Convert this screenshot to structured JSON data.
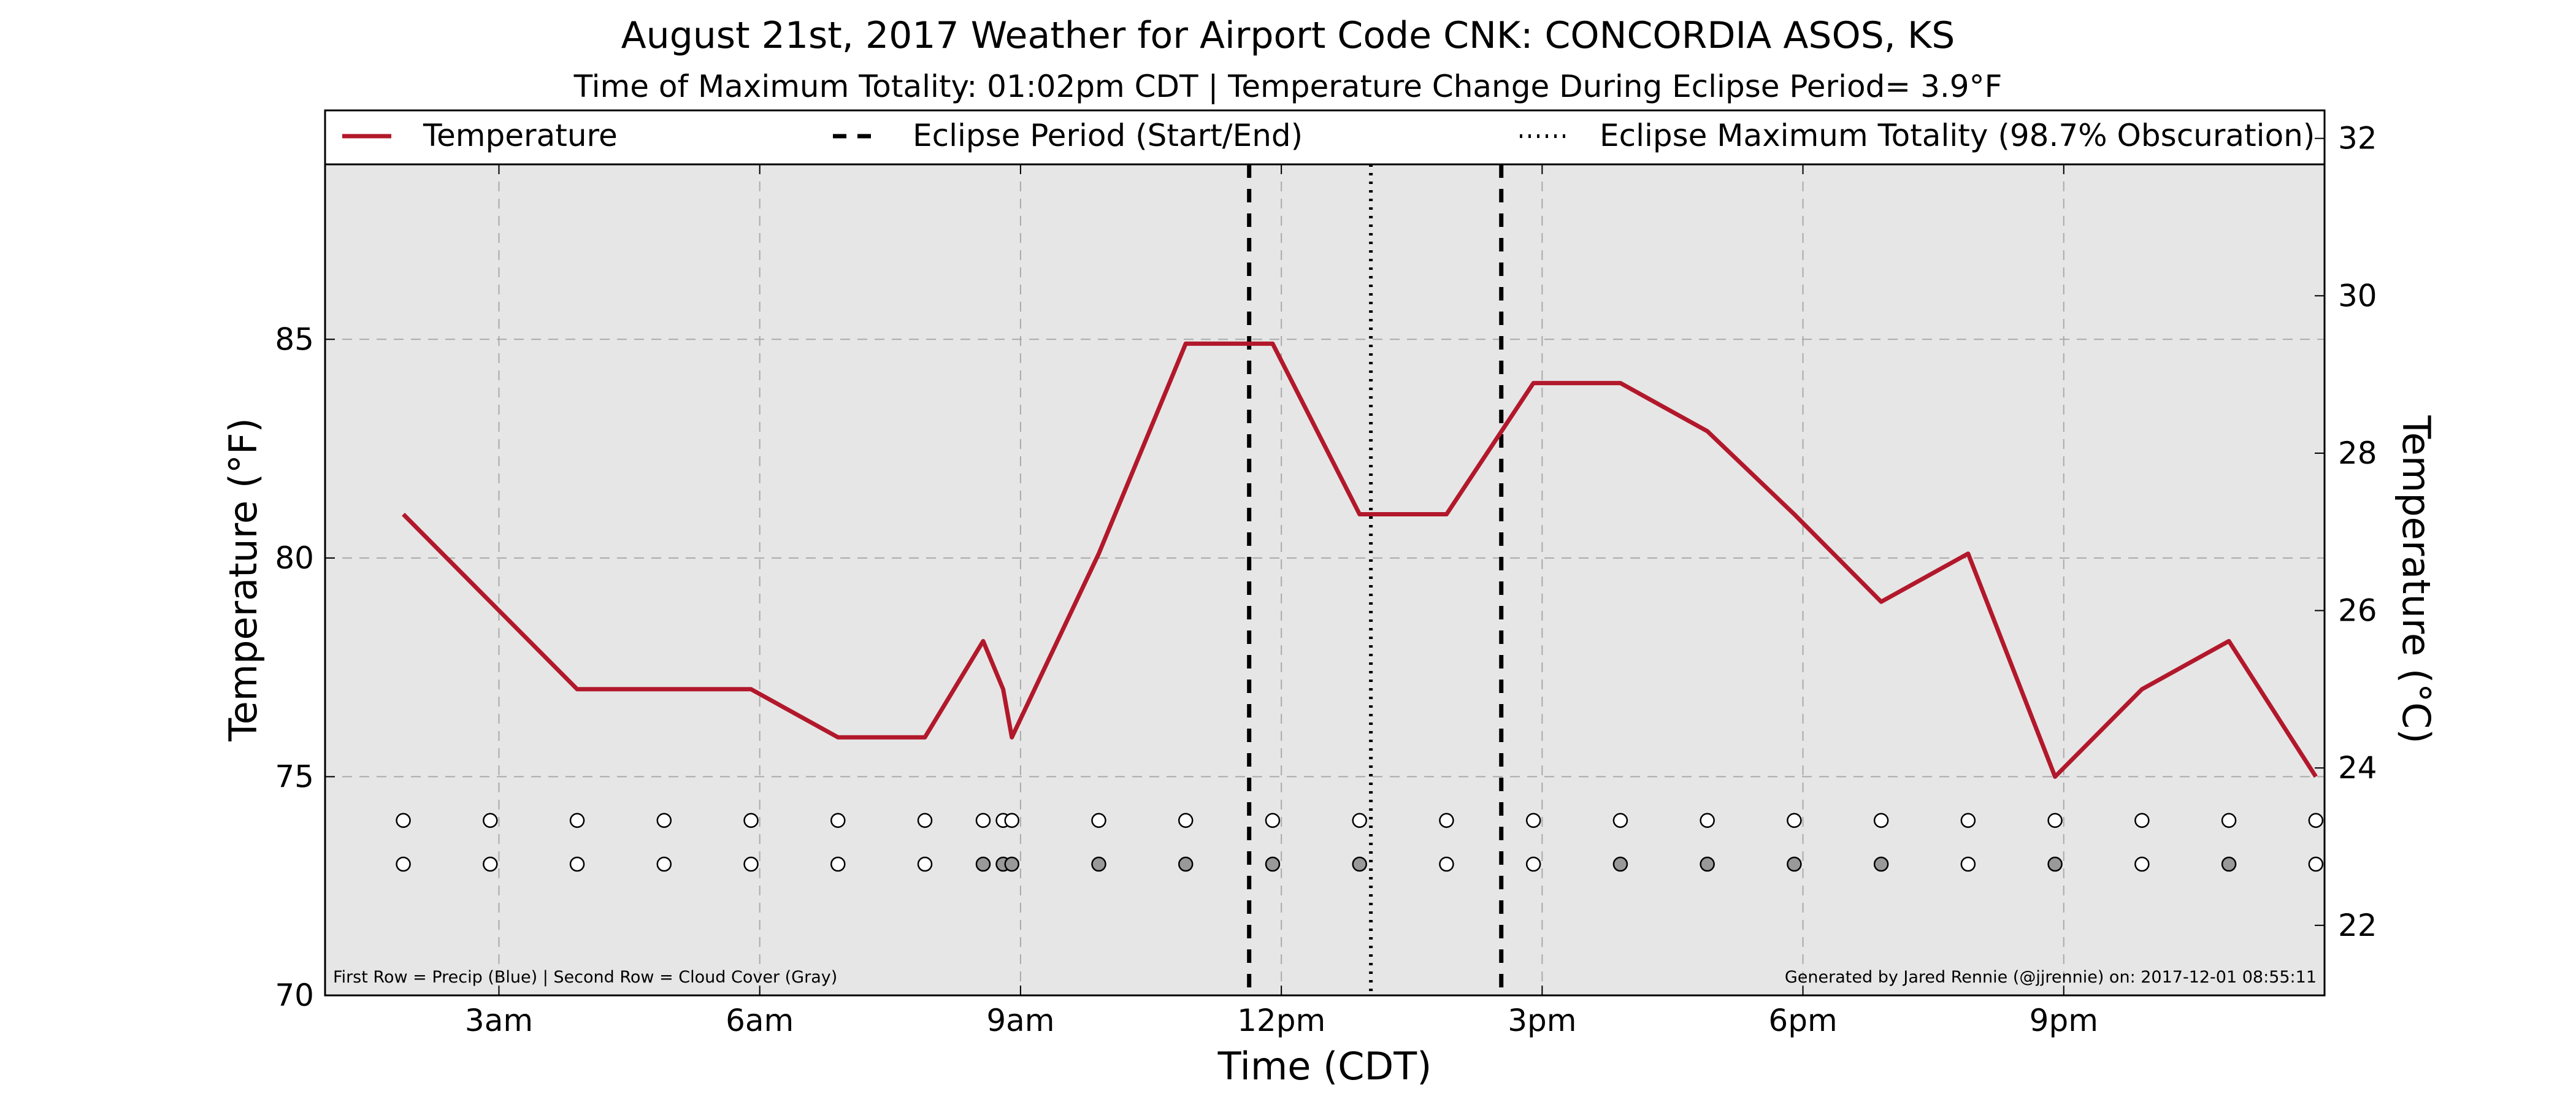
{
  "chart_data": {
    "type": "line",
    "title": "August 21st, 2017 Weather for Airport Code CNK: CONCORDIA ASOS, KS",
    "subtitle": "Time of Maximum Totality: 01:02pm CDT | Temperature Change During Eclipse Period= 3.9°F",
    "xlabel": "Time (CDT)",
    "ylabel": "Temperature (°F)",
    "ylabel_right": "Temperature (°C)",
    "xlim": [
      1.0,
      24.0
    ],
    "ylim": [
      70,
      89
    ],
    "ylim_right": [
      21.11,
      31.67
    ],
    "x_ticks": [
      {
        "x": 3,
        "label": "3am"
      },
      {
        "x": 6,
        "label": "6am"
      },
      {
        "x": 9,
        "label": "9am"
      },
      {
        "x": 12,
        "label": "12pm"
      },
      {
        "x": 15,
        "label": "3pm"
      },
      {
        "x": 18,
        "label": "6pm"
      },
      {
        "x": 21,
        "label": "9pm"
      }
    ],
    "y_ticks": [
      70,
      75,
      80,
      85
    ],
    "y_ticks_right": [
      22,
      24,
      26,
      28,
      30,
      32
    ],
    "grid": true,
    "legend_placement": "top, above plot",
    "legend": [
      {
        "label": "Temperature",
        "style": "solid"
      },
      {
        "label": "Eclipse Period (Start/End)",
        "style": "dashed"
      },
      {
        "label": "Eclipse Maximum Totality (98.7% Obscuration)",
        "style": "dotted"
      }
    ],
    "series": [
      {
        "name": "Temperature",
        "color": "#b2182b",
        "x": [
          1.9,
          2.9,
          3.9,
          4.9,
          5.9,
          6.9,
          7.9,
          8.57,
          8.8,
          8.9,
          9.9,
          10.9,
          11.9,
          12.9,
          13.9,
          14.9,
          15.9,
          16.9,
          17.9,
          18.9,
          19.9,
          20.9,
          21.9,
          22.9,
          23.9
        ],
        "y": [
          81.0,
          79.0,
          77.0,
          77.0,
          77.0,
          75.9,
          75.9,
          78.1,
          77.0,
          75.9,
          80.1,
          84.9,
          84.9,
          81.0,
          81.0,
          84.0,
          84.0,
          82.9,
          81.0,
          79.0,
          80.1,
          75.0,
          77.0,
          78.1,
          75.0
        ]
      }
    ],
    "eclipse_start": 11.63,
    "eclipse_end": 14.53,
    "eclipse_max": 13.03,
    "marker_rows": [
      {
        "row": "First Row = Precip (Blue)",
        "y": 74.0,
        "points": [
          {
            "x": 1.9,
            "fill": "#ffffff"
          },
          {
            "x": 2.9,
            "fill": "#ffffff"
          },
          {
            "x": 3.9,
            "fill": "#ffffff"
          },
          {
            "x": 4.9,
            "fill": "#ffffff"
          },
          {
            "x": 5.9,
            "fill": "#ffffff"
          },
          {
            "x": 6.9,
            "fill": "#ffffff"
          },
          {
            "x": 7.9,
            "fill": "#ffffff"
          },
          {
            "x": 8.57,
            "fill": "#ffffff"
          },
          {
            "x": 8.8,
            "fill": "#ffffff"
          },
          {
            "x": 8.9,
            "fill": "#ffffff"
          },
          {
            "x": 9.9,
            "fill": "#ffffff"
          },
          {
            "x": 10.9,
            "fill": "#ffffff"
          },
          {
            "x": 11.9,
            "fill": "#ffffff"
          },
          {
            "x": 12.9,
            "fill": "#ffffff"
          },
          {
            "x": 13.9,
            "fill": "#ffffff"
          },
          {
            "x": 14.9,
            "fill": "#ffffff"
          },
          {
            "x": 15.9,
            "fill": "#ffffff"
          },
          {
            "x": 16.9,
            "fill": "#ffffff"
          },
          {
            "x": 17.9,
            "fill": "#ffffff"
          },
          {
            "x": 18.9,
            "fill": "#ffffff"
          },
          {
            "x": 19.9,
            "fill": "#ffffff"
          },
          {
            "x": 20.9,
            "fill": "#ffffff"
          },
          {
            "x": 21.9,
            "fill": "#ffffff"
          },
          {
            "x": 22.9,
            "fill": "#ffffff"
          },
          {
            "x": 23.9,
            "fill": "#ffffff"
          }
        ]
      },
      {
        "row": "Second Row = Cloud Cover (Gray)",
        "y": 73.0,
        "points": [
          {
            "x": 1.9,
            "fill": "#ffffff"
          },
          {
            "x": 2.9,
            "fill": "#ffffff"
          },
          {
            "x": 3.9,
            "fill": "#ffffff"
          },
          {
            "x": 4.9,
            "fill": "#ffffff"
          },
          {
            "x": 5.9,
            "fill": "#ffffff"
          },
          {
            "x": 6.9,
            "fill": "#ffffff"
          },
          {
            "x": 7.9,
            "fill": "#ffffff"
          },
          {
            "x": 8.57,
            "fill": "#999999"
          },
          {
            "x": 8.8,
            "fill": "#999999"
          },
          {
            "x": 8.9,
            "fill": "#999999"
          },
          {
            "x": 9.9,
            "fill": "#999999"
          },
          {
            "x": 10.9,
            "fill": "#999999"
          },
          {
            "x": 11.9,
            "fill": "#999999"
          },
          {
            "x": 12.9,
            "fill": "#999999"
          },
          {
            "x": 13.9,
            "fill": "#ffffff"
          },
          {
            "x": 14.9,
            "fill": "#ffffff"
          },
          {
            "x": 15.9,
            "fill": "#999999"
          },
          {
            "x": 16.9,
            "fill": "#999999"
          },
          {
            "x": 17.9,
            "fill": "#999999"
          },
          {
            "x": 18.9,
            "fill": "#999999"
          },
          {
            "x": 19.9,
            "fill": "#ffffff"
          },
          {
            "x": 20.9,
            "fill": "#999999"
          },
          {
            "x": 21.9,
            "fill": "#ffffff"
          },
          {
            "x": 22.9,
            "fill": "#999999"
          },
          {
            "x": 23.9,
            "fill": "#ffffff"
          }
        ]
      }
    ],
    "footnote_left": "First Row = Precip (Blue) | Second Row = Cloud Cover (Gray)",
    "footnote_right": "Generated by Jared Rennie (@jjrennie) on: 2017-12-01 08:55:11",
    "colors": {
      "temperature_line": "#b2182b",
      "plot_background": "#e6e6e6",
      "grid": "#aaaaaa",
      "eclipse_lines": "#000000",
      "cloud_marker": "#999999"
    }
  }
}
